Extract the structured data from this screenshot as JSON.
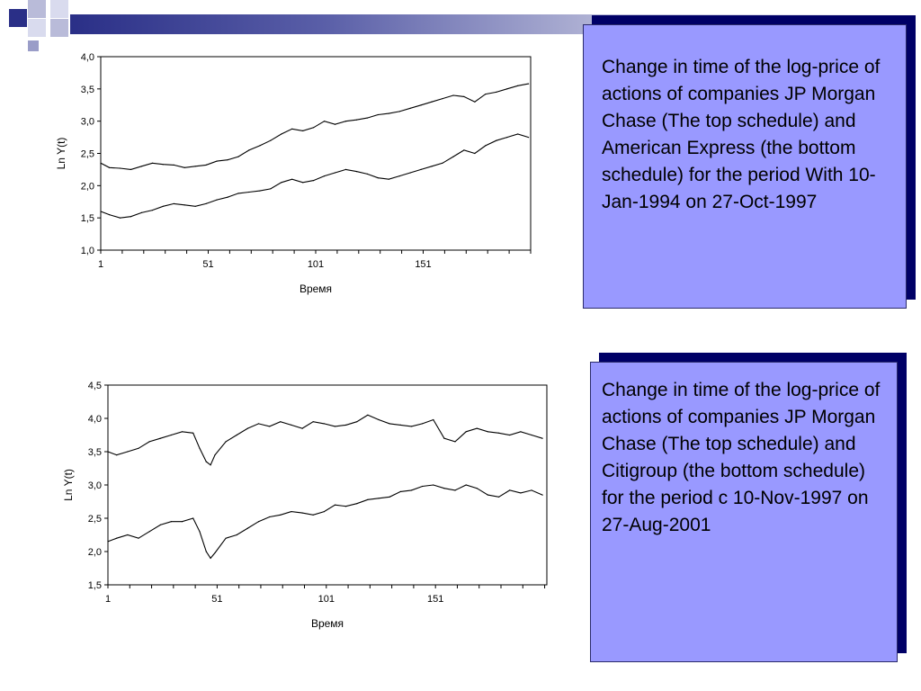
{
  "colors": {
    "accent_dark": "#2a2f87",
    "note_fill": "#9999ff",
    "note_shadow": "#000066"
  },
  "slide": {
    "note1": "Change in time of the log-price of actions of companies JP Morgan Chase (The top schedule) and American Express (the bottom schedule) for the period With 10-Jan-1994 on 27-Oct-1997",
    "note2": "Change in time of the log-price of actions of companies JP Morgan Chase (The top schedule) and Citigroup (the bottom schedule) for the period c 10-Nov-1997 on 27-Aug-2001"
  },
  "chart_data": [
    {
      "type": "line",
      "xlabel": "Время",
      "ylabel": "Ln Y(t)",
      "ylim": [
        1.0,
        4.0
      ],
      "xlim": [
        1,
        201
      ],
      "yticks": [
        "4,0",
        "3,5",
        "3,0",
        "2,5",
        "2,0",
        "1,5",
        "1,0"
      ],
      "xticks": [
        "1",
        "51",
        "101",
        "151"
      ],
      "series": [
        {
          "x": [
            1,
            5,
            10,
            15,
            20,
            25,
            30,
            35,
            40,
            45,
            50,
            55,
            60,
            65,
            70,
            75,
            80,
            85,
            90,
            95,
            100,
            105,
            110,
            115,
            120,
            125,
            130,
            135,
            140,
            145,
            150,
            155,
            160,
            165,
            170,
            175,
            180,
            185,
            190,
            195,
            200
          ],
          "values": [
            2.35,
            2.28,
            2.27,
            2.25,
            2.3,
            2.35,
            2.33,
            2.32,
            2.28,
            2.3,
            2.32,
            2.38,
            2.4,
            2.45,
            2.55,
            2.62,
            2.7,
            2.8,
            2.88,
            2.85,
            2.9,
            3.0,
            2.95,
            3.0,
            3.02,
            3.05,
            3.1,
            3.12,
            3.15,
            3.2,
            3.25,
            3.3,
            3.35,
            3.4,
            3.38,
            3.3,
            3.42,
            3.45,
            3.5,
            3.55,
            3.58
          ]
        },
        {
          "x": [
            1,
            5,
            10,
            15,
            20,
            25,
            30,
            35,
            40,
            45,
            50,
            55,
            60,
            65,
            70,
            75,
            80,
            85,
            90,
            95,
            100,
            105,
            110,
            115,
            120,
            125,
            130,
            135,
            140,
            145,
            150,
            155,
            160,
            165,
            170,
            175,
            180,
            185,
            190,
            195,
            200
          ],
          "values": [
            1.6,
            1.55,
            1.5,
            1.52,
            1.58,
            1.62,
            1.68,
            1.72,
            1.7,
            1.68,
            1.72,
            1.78,
            1.82,
            1.88,
            1.9,
            1.92,
            1.95,
            2.05,
            2.1,
            2.05,
            2.08,
            2.15,
            2.2,
            2.25,
            2.22,
            2.18,
            2.12,
            2.1,
            2.15,
            2.2,
            2.25,
            2.3,
            2.35,
            2.45,
            2.55,
            2.5,
            2.62,
            2.7,
            2.75,
            2.8,
            2.75
          ]
        }
      ]
    },
    {
      "type": "line",
      "xlabel": "Время",
      "ylabel": "Ln Y(t)",
      "ylim": [
        1.5,
        4.5
      ],
      "xlim": [
        1,
        202
      ],
      "yticks": [
        "4,5",
        "4,0",
        "3,5",
        "3,0",
        "2,5",
        "2,0",
        "1,5"
      ],
      "xticks": [
        "1",
        "51",
        "101",
        "151"
      ],
      "series": [
        {
          "x": [
            1,
            5,
            10,
            15,
            20,
            25,
            30,
            35,
            40,
            43,
            46,
            48,
            50,
            55,
            60,
            65,
            70,
            75,
            80,
            85,
            90,
            95,
            100,
            105,
            110,
            115,
            120,
            125,
            130,
            135,
            140,
            145,
            150,
            155,
            160,
            165,
            170,
            175,
            180,
            185,
            190,
            195,
            200
          ],
          "values": [
            3.5,
            3.45,
            3.5,
            3.55,
            3.65,
            3.7,
            3.75,
            3.8,
            3.78,
            3.55,
            3.35,
            3.3,
            3.45,
            3.65,
            3.75,
            3.85,
            3.92,
            3.88,
            3.95,
            3.9,
            3.85,
            3.95,
            3.92,
            3.88,
            3.9,
            3.95,
            4.05,
            3.98,
            3.92,
            3.9,
            3.88,
            3.92,
            3.98,
            3.7,
            3.65,
            3.8,
            3.85,
            3.8,
            3.78,
            3.75,
            3.8,
            3.75,
            3.7
          ]
        },
        {
          "x": [
            1,
            5,
            10,
            15,
            20,
            25,
            30,
            35,
            40,
            43,
            46,
            48,
            50,
            55,
            60,
            65,
            70,
            75,
            80,
            85,
            90,
            95,
            100,
            105,
            110,
            115,
            120,
            125,
            130,
            135,
            140,
            145,
            150,
            155,
            160,
            165,
            170,
            175,
            180,
            185,
            190,
            195,
            200
          ],
          "values": [
            2.15,
            2.2,
            2.25,
            2.2,
            2.3,
            2.4,
            2.45,
            2.45,
            2.5,
            2.3,
            2.0,
            1.9,
            1.98,
            2.2,
            2.25,
            2.35,
            2.45,
            2.52,
            2.55,
            2.6,
            2.58,
            2.55,
            2.6,
            2.7,
            2.68,
            2.72,
            2.78,
            2.8,
            2.82,
            2.9,
            2.92,
            2.98,
            3.0,
            2.95,
            2.92,
            3.0,
            2.95,
            2.85,
            2.82,
            2.92,
            2.88,
            2.92,
            2.85
          ]
        }
      ]
    }
  ]
}
